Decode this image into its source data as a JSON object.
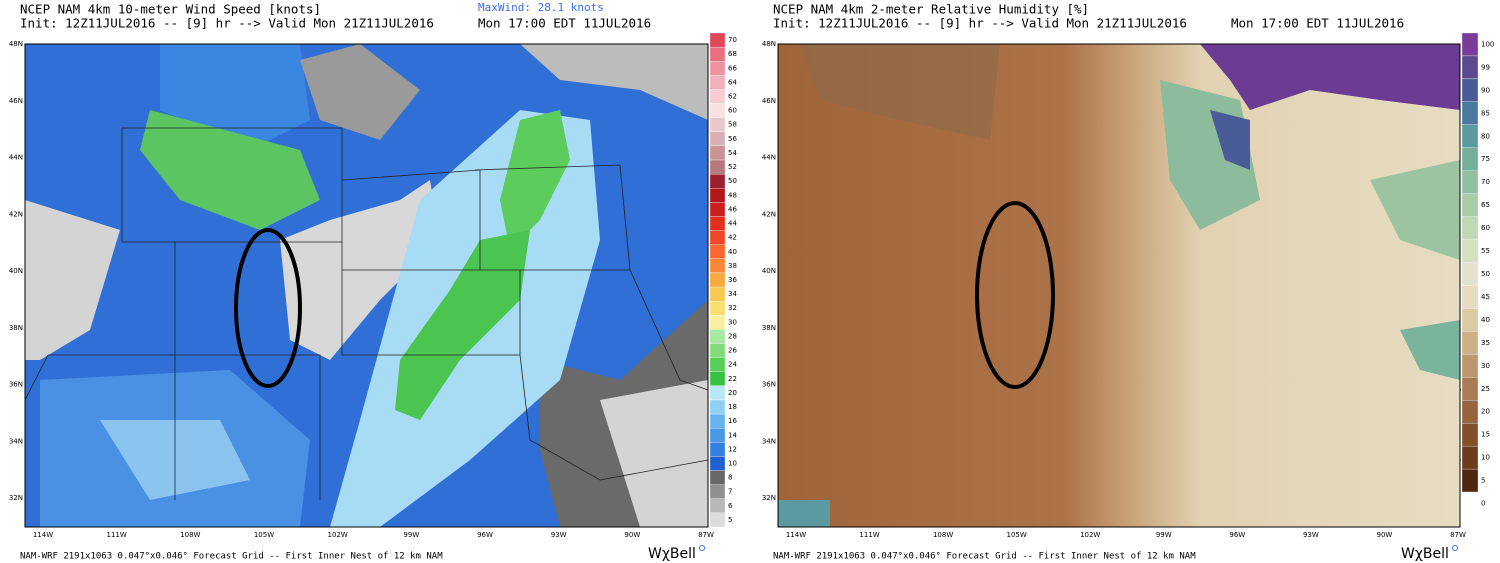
{
  "panels": [
    {
      "title": "NCEP NAM 4km 10-meter Wind Speed [knots]",
      "init": "Init: 12Z11JUL2016 -- [9] hr --> Valid Mon 21Z11JUL2016",
      "valid_local": "Mon 17:00 EDT 11JUL2016",
      "max_wind": "MaxWind: 28.1 knots",
      "colorbar": {
        "labels": [
          "70",
          "68",
          "66",
          "64",
          "62",
          "60",
          "58",
          "56",
          "54",
          "52",
          "50",
          "48",
          "46",
          "44",
          "42",
          "40",
          "38",
          "36",
          "34",
          "32",
          "30",
          "28",
          "26",
          "24",
          "22",
          "20",
          "18",
          "16",
          "14",
          "12",
          "10",
          "8",
          "7",
          "6",
          "5"
        ],
        "colors": [
          "#e0485a",
          "#e8707e",
          "#ee92a0",
          "#f2b0ba",
          "#f6ccd2",
          "#f8e0e4",
          "#e8c8cc",
          "#d8b0b4",
          "#c89498",
          "#b87880",
          "#9a2030",
          "#b01818",
          "#c82020",
          "#e03020",
          "#f04828",
          "#f86830",
          "#f88838",
          "#f8a840",
          "#f8c850",
          "#f8e070",
          "#f8f0a0",
          "#a8e8a0",
          "#80dc78",
          "#58d058",
          "#38c040",
          "#b8e8f8",
          "#90d0f4",
          "#68b4ee",
          "#4898e6",
          "#3480de",
          "#2060d0",
          "#686868",
          "#909090",
          "#b8b8b8",
          "#dcdcdc"
        ]
      },
      "lat_labels": [
        "48N",
        "46N",
        "44N",
        "42N",
        "40N",
        "38N",
        "36N",
        "34N",
        "32N"
      ],
      "lon_labels": [
        "114W",
        "111W",
        "108W",
        "105W",
        "102W",
        "99W",
        "96W",
        "93W",
        "90W",
        "87W"
      ],
      "footer": "NAM-WRF 2191x1063 0.047°x0.046° Forecast Grid -- First Inner Nest of 12 km NAM",
      "logo": "WχBell"
    },
    {
      "title": "NCEP NAM 4km 2-meter Relative Humidity [%]",
      "init": "Init: 12Z11JUL2016 -- [9] hr --> Valid Mon 21Z11JUL2016",
      "valid_local": "Mon 17:00 EDT 11JUL2016",
      "colorbar": {
        "labels": [
          "100",
          "99",
          "90",
          "85",
          "80",
          "75",
          "70",
          "65",
          "60",
          "55",
          "50",
          "45",
          "40",
          "35",
          "30",
          "25",
          "20",
          "15",
          "10",
          "5",
          "0"
        ],
        "colors": [
          "#7a3c98",
          "#5a4a90",
          "#4a5c98",
          "#4a7aa0",
          "#5a9aa0",
          "#74b098",
          "#90c0a0",
          "#a8cca8",
          "#c0d8b4",
          "#d4e0c0",
          "#e4e2cc",
          "#e6dcc0",
          "#dccaa4",
          "#ccb088",
          "#bc9870",
          "#a87c54",
          "#966440",
          "#84502c",
          "#6c3c1c",
          "#502810",
          "#ffffff"
        ]
      },
      "lat_labels": [
        "48N",
        "46N",
        "44N",
        "42N",
        "40N",
        "38N",
        "36N",
        "34N",
        "32N"
      ],
      "lon_labels": [
        "114W",
        "111W",
        "108W",
        "105W",
        "102W",
        "99W",
        "96W",
        "93W",
        "90W",
        "87W"
      ],
      "footer": "NAM-WRF 2191x1063 0.047°x0.046° Forecast Grid -- First Inner Nest of 12 km NAM",
      "logo": "WχBell"
    }
  ]
}
